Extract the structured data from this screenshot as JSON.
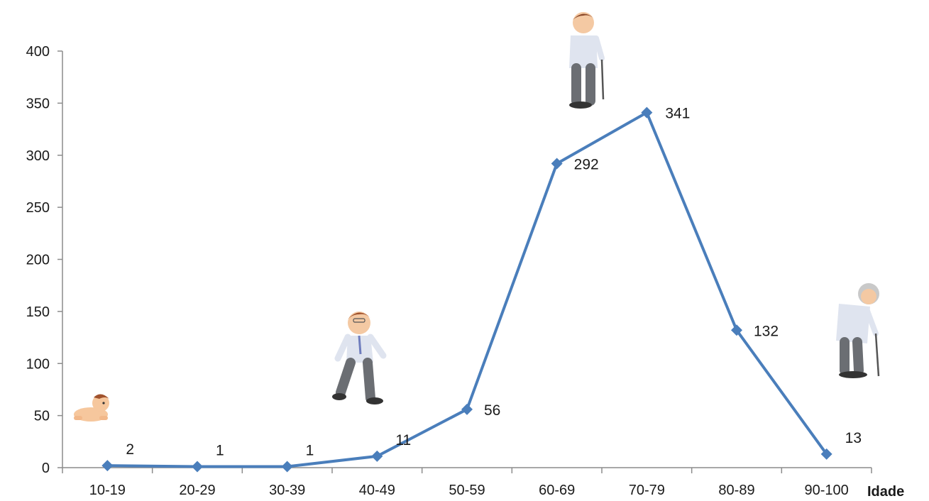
{
  "chart_data": {
    "type": "line",
    "title": "",
    "xlabel": "Idade",
    "ylabel": "",
    "categories": [
      "10-19",
      "20-29",
      "30-39",
      "40-49",
      "50-59",
      "60-69",
      "70-79",
      "80-89",
      "90-100"
    ],
    "series": [
      {
        "values": [
          2,
          1,
          1,
          11,
          56,
          292,
          341,
          132,
          13
        ],
        "color": "#4a7ebb"
      }
    ],
    "data_labels": [
      "2",
      "1",
      "1",
      "11",
      "56",
      "292",
      "341",
      "132",
      "13"
    ],
    "ylim": [
      0,
      400
    ],
    "yticks": [
      0,
      50,
      100,
      150,
      200,
      250,
      300,
      350,
      400
    ],
    "ytick_labels": [
      "0",
      "50",
      "100",
      "150",
      "200",
      "250",
      "300",
      "350",
      "400"
    ],
    "grid": false,
    "marker": "diamond",
    "illustrations": [
      "baby-crawling-icon",
      "man-walking-icon",
      "elderly-man-cane-icon",
      "very-old-man-cane-icon"
    ]
  }
}
